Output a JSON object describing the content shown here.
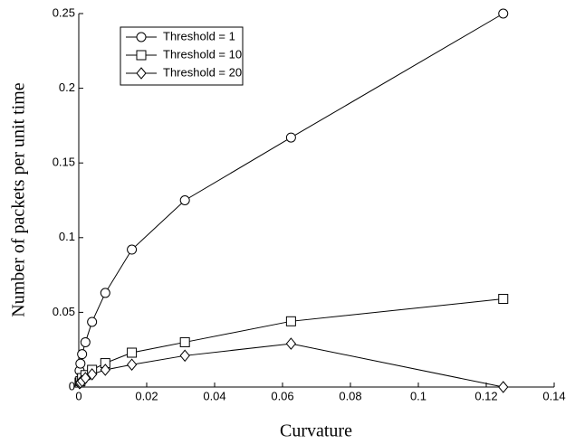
{
  "chart_data": {
    "type": "line",
    "x_label": "Curvature",
    "y_label": "Number of packets per unit time",
    "x": [
      0.000244140625,
      0.00048828125,
      0.0009765625,
      0.001953125,
      0.00390625,
      0.0078125,
      0.015625,
      0.03125,
      0.0625,
      0.125
    ],
    "series": [
      {
        "name": "Threshold = 1",
        "color": "#000000",
        "marker": "circle",
        "values": [
          0.011,
          0.0157,
          0.022,
          0.03,
          0.0436,
          0.063,
          0.092,
          0.125,
          0.167,
          0.25
        ]
      },
      {
        "name": "Threshold = 10",
        "color": "#000000",
        "marker": "square",
        "values": [
          0.003,
          0.004,
          0.006,
          0.008,
          0.0115,
          0.016,
          0.023,
          0.03,
          0.044,
          0.059
        ]
      },
      {
        "name": "Threshold = 20",
        "color": "#000000",
        "marker": "diamond",
        "values": [
          0.0025,
          0.003,
          0.004,
          0.006,
          0.0085,
          0.0115,
          0.015,
          0.021,
          0.029,
          0
        ]
      }
    ],
    "xlim": [
      0,
      0.14
    ],
    "xticks": [
      0,
      0.02,
      0.04,
      0.06,
      0.08,
      0.1,
      0.12,
      0.14
    ],
    "ylim": [
      0,
      0.25
    ],
    "yticks": [
      0,
      0.05,
      0.1,
      0.15,
      0.2,
      0.25
    ],
    "grid": false,
    "legend": "upper left"
  }
}
